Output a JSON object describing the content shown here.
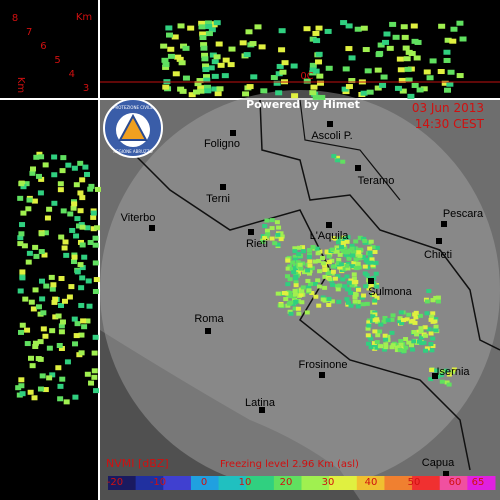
{
  "header": {
    "powered_by": "Powered by Himet",
    "date": "03 Jun 2013",
    "time": "14:30 CEST"
  },
  "logo": {
    "line1": "PROTEZIONE CIVILE",
    "line2": "REGIONE ABRUZZO"
  },
  "profile": {
    "unit": "Km",
    "side_unit": "Km",
    "levels": [
      "8",
      "7",
      "6",
      "5",
      "4",
      "3"
    ],
    "freezing_marker": "0C"
  },
  "cities": [
    "Foligno",
    "Ascoli P.",
    "Teramo",
    "Terni",
    "Viterbo",
    "Pescara",
    "L'Aquila",
    "Rieti",
    "Chieti",
    "Sulmona",
    "Roma",
    "Frosinone",
    "Isernia",
    "Latina",
    "Capua"
  ],
  "footer": {
    "product": "NVMI [dBZ]",
    "freezing_level": "Freezing level  2.96 Km (asl)"
  },
  "scale": {
    "ticks": [
      -20,
      -10,
      0,
      10,
      20,
      30,
      40,
      50,
      60,
      65
    ]
  }
}
